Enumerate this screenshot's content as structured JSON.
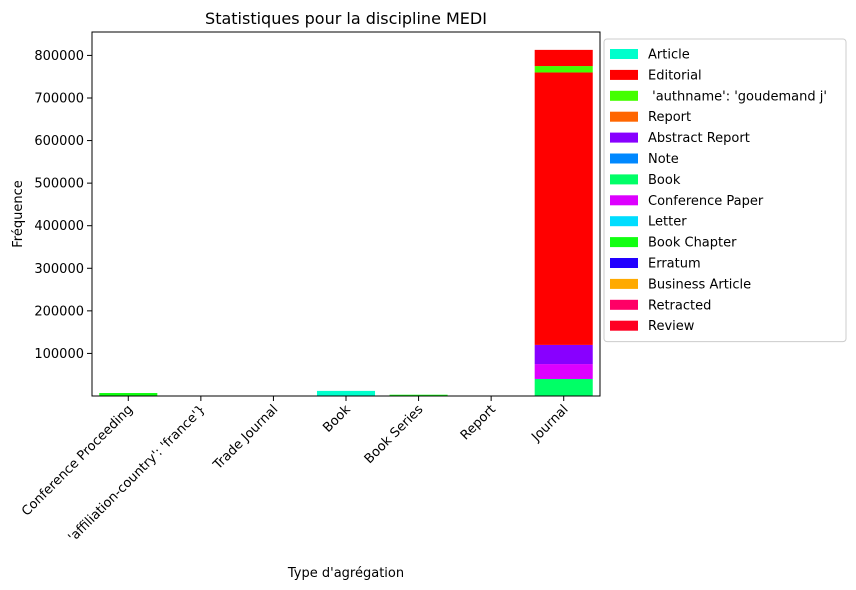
{
  "chart_data": {
    "type": "bar",
    "stacked": true,
    "title": "Statistiques pour la discipline MEDI",
    "xlabel": "Type d'agrégation",
    "ylabel": "Fréquence",
    "ylim": [
      0,
      855000
    ],
    "yticks": [
      100000,
      200000,
      300000,
      400000,
      500000,
      600000,
      700000,
      800000
    ],
    "grid": false,
    "legend_position": "outside-right",
    "categories": [
      "Conference Proceeding",
      "'affiliation-country': 'france'}",
      "Trade Journal",
      "Book",
      "Book Series",
      "Report",
      "Journal"
    ],
    "series": [
      {
        "name": "Article",
        "color": "#00ffcc",
        "values": [
          0,
          0,
          0,
          12000,
          0,
          0,
          0
        ]
      },
      {
        "name": "Editorial",
        "color": "#ff0000",
        "values": [
          0,
          0,
          0,
          0,
          0,
          0,
          0
        ]
      },
      {
        "name": " 'authname': 'goudemand j'",
        "color": "#44ff00",
        "values": [
          0,
          0,
          0,
          0,
          0,
          0,
          0
        ]
      },
      {
        "name": "Report",
        "color": "#ff6600",
        "values": [
          0,
          0,
          0,
          0,
          0,
          0,
          0
        ]
      },
      {
        "name": "Abstract Report",
        "color": "#8800ff",
        "values": [
          0,
          0,
          0,
          0,
          0,
          0,
          0
        ]
      },
      {
        "name": "Note",
        "color": "#0088ff",
        "values": [
          0,
          0,
          0,
          0,
          0,
          0,
          0
        ]
      },
      {
        "name": "Book",
        "color": "#00ff66",
        "values": [
          0,
          0,
          0,
          0,
          0,
          0,
          40000
        ]
      },
      {
        "name": "Conference Paper",
        "color": "#dd00ff",
        "values": [
          0,
          0,
          0,
          0,
          0,
          0,
          35000
        ]
      },
      {
        "name": "Letter",
        "color": "#00ddff",
        "values": [
          0,
          0,
          0,
          0,
          0,
          0,
          0
        ]
      },
      {
        "name": "Book Chapter",
        "color": "#11ff11",
        "values": [
          7000,
          0,
          0,
          0,
          3000,
          0,
          0
        ]
      },
      {
        "name": "Erratum",
        "color": "#2200ff",
        "values": [
          0,
          0,
          0,
          0,
          0,
          0,
          0
        ]
      },
      {
        "name": "Business Article",
        "color": "#ffaa00",
        "values": [
          0,
          0,
          0,
          0,
          0,
          0,
          0
        ]
      },
      {
        "name": "Retracted",
        "color": "#ff0066",
        "values": [
          0,
          0,
          0,
          0,
          0,
          0,
          0
        ]
      },
      {
        "name": "Review",
        "color": "#ff0022",
        "values": [
          0,
          0,
          0,
          0,
          0,
          0,
          0
        ]
      },
      {
        "name": "Abstract Report",
        "color": "#8800ff",
        "values": [
          0,
          0,
          0,
          0,
          0,
          0,
          45000
        ],
        "hidden_legend": true
      },
      {
        "name": "Editorial",
        "color": "#ff0000",
        "values": [
          0,
          0,
          0,
          0,
          0,
          0,
          640000
        ],
        "hidden_legend": true
      },
      {
        "name": " 'authname': 'goudemand j'",
        "color": "#44ff00",
        "values": [
          0,
          0,
          0,
          0,
          0,
          0,
          15000
        ],
        "hidden_legend": true
      },
      {
        "name": "Editorial",
        "color": "#ff0000",
        "values": [
          0,
          0,
          0,
          0,
          0,
          0,
          38000
        ],
        "hidden_legend": true
      }
    ]
  }
}
